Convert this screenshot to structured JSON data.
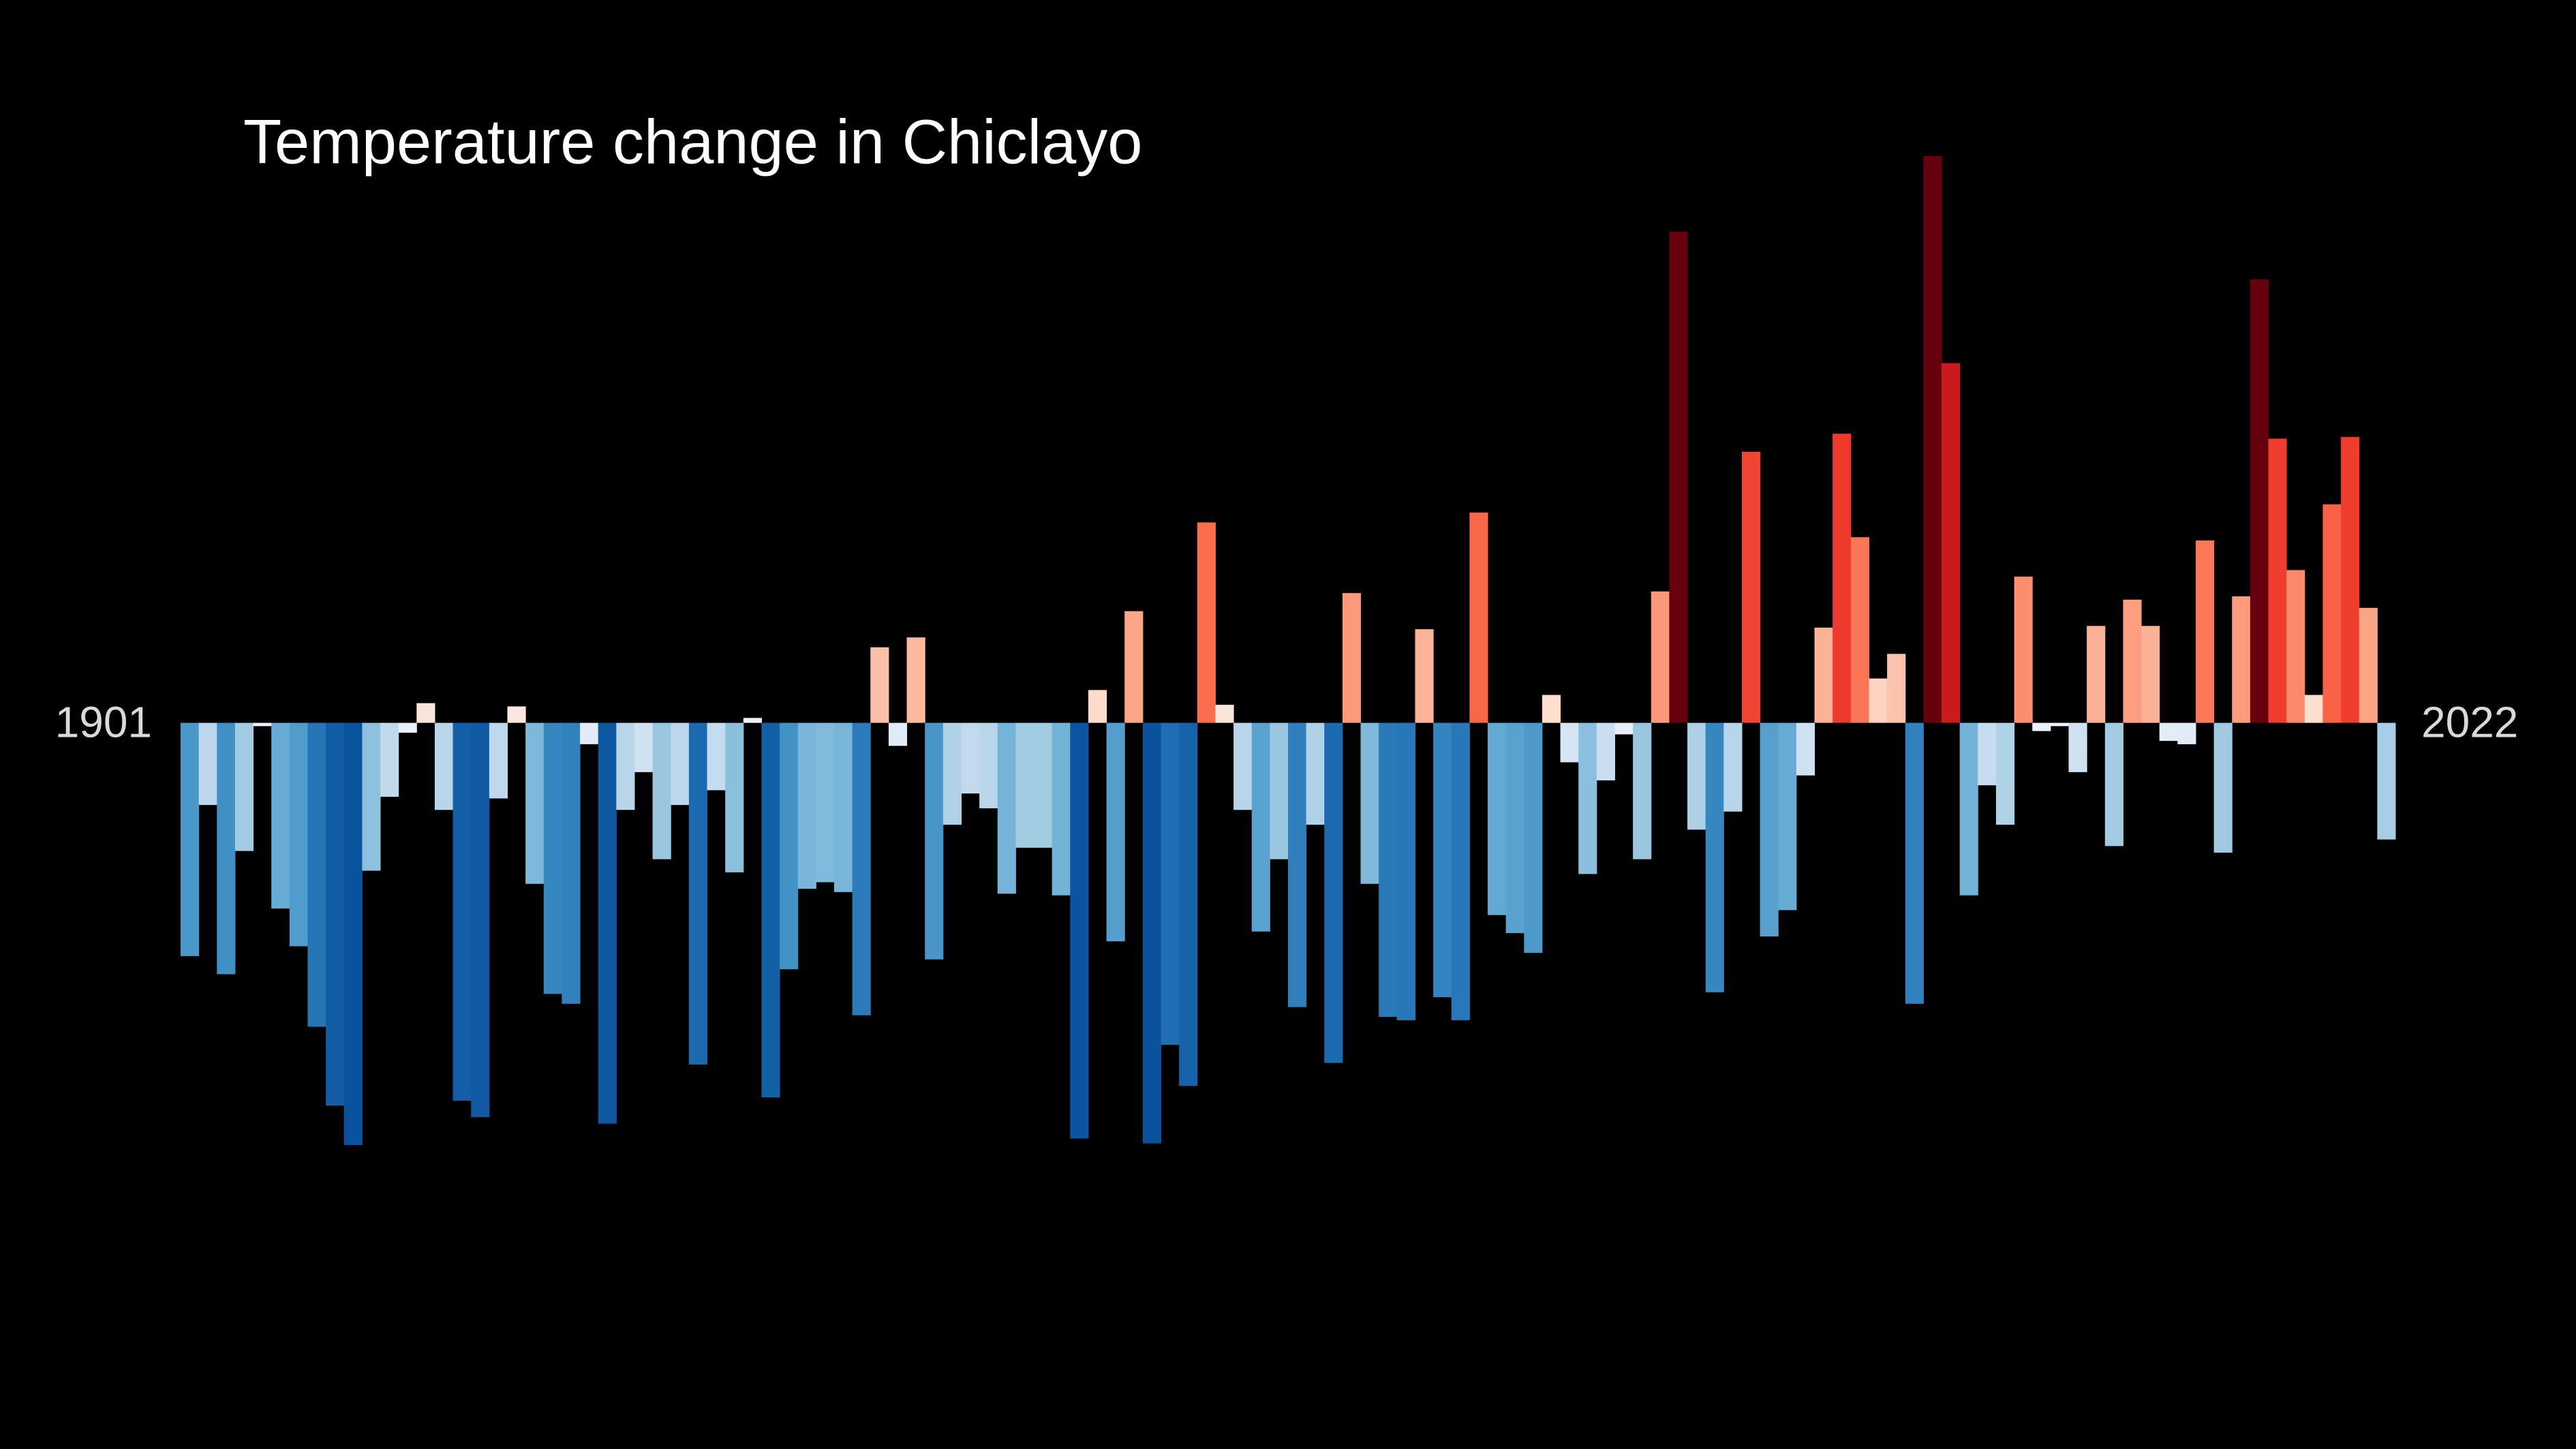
{
  "chart_data": {
    "type": "bar",
    "title": "Temperature change in Chiclayo",
    "categories": [
      "1901",
      null,
      null,
      null,
      null,
      null,
      null,
      null,
      null,
      null,
      null,
      null,
      null,
      null,
      null,
      null,
      null,
      null,
      null,
      null,
      null,
      null,
      null,
      null,
      null,
      null,
      null,
      null,
      null,
      null,
      null,
      null,
      null,
      null,
      null,
      null,
      null,
      null,
      null,
      null,
      null,
      null,
      null,
      null,
      null,
      null,
      null,
      null,
      null,
      null,
      null,
      null,
      null,
      null,
      null,
      null,
      null,
      null,
      null,
      null,
      null,
      null,
      null,
      null,
      null,
      null,
      null,
      null,
      null,
      null,
      null,
      null,
      null,
      null,
      null,
      null,
      null,
      null,
      null,
      null,
      null,
      null,
      null,
      null,
      null,
      null,
      null,
      null,
      null,
      null,
      null,
      null,
      null,
      null,
      null,
      null,
      null,
      null,
      null,
      null,
      null,
      null,
      null,
      null,
      null,
      null,
      null,
      null,
      null,
      null,
      null,
      null,
      null,
      null,
      null,
      null,
      null,
      null,
      null,
      null,
      null,
      "2022"
    ],
    "values": [
      -1.42,
      -0.5,
      -1.53,
      -0.78,
      -0.02,
      -1.13,
      -1.36,
      -1.85,
      -2.33,
      -2.57,
      -0.9,
      -0.45,
      -0.06,
      0.12,
      -0.53,
      -2.3,
      -2.4,
      -0.46,
      0.1,
      -0.98,
      -1.65,
      -1.71,
      -0.13,
      -2.44,
      -0.53,
      -0.3,
      -0.83,
      -0.5,
      -2.08,
      -0.41,
      -0.91,
      0.03,
      -2.28,
      -1.5,
      -1.01,
      -0.97,
      -1.03,
      -1.78,
      0.46,
      -0.14,
      0.52,
      -1.44,
      -0.62,
      -0.43,
      -0.52,
      -1.04,
      -0.76,
      -0.76,
      -1.05,
      -2.53,
      0.2,
      -1.33,
      0.68,
      -2.56,
      -1.96,
      -2.21,
      1.22,
      0.11,
      -0.53,
      -1.27,
      -0.83,
      -1.73,
      -0.62,
      -2.07,
      0.79,
      -0.98,
      -1.79,
      -1.81,
      0.57,
      -1.67,
      -1.81,
      1.28,
      -1.17,
      -1.28,
      -1.4,
      0.17,
      -0.24,
      -0.92,
      -0.35,
      -0.07,
      -0.83,
      0.8,
      2.99,
      -0.65,
      -1.64,
      -0.54,
      1.65,
      -1.3,
      -1.14,
      -0.32,
      0.58,
      1.76,
      1.13,
      0.27,
      0.42,
      -1.71,
      3.45,
      2.19,
      -1.05,
      -0.38,
      -0.62,
      0.89,
      -0.05,
      -0.02,
      -0.3,
      0.59,
      -0.75,
      0.75,
      0.59,
      -0.11,
      -0.13,
      1.11,
      -0.79,
      0.77,
      2.7,
      1.73,
      0.93,
      0.17,
      1.33,
      1.74,
      0.7,
      -0.71
    ],
    "color_scale": [
      [
        -2.6,
        "#08519c"
      ],
      [
        -1.9,
        "#2171b5"
      ],
      [
        -1.5,
        "#4292c6"
      ],
      [
        -1.1,
        "#6baed6"
      ],
      [
        -0.8,
        "#9ecae1"
      ],
      [
        -0.4,
        "#c6dbef"
      ],
      [
        0,
        "#eef4fb"
      ],
      [
        0.15,
        "#fee0d2"
      ],
      [
        0.5,
        "#fcbba1"
      ],
      [
        0.85,
        "#fc9272"
      ],
      [
        1.25,
        "#fb6a4a"
      ],
      [
        1.75,
        "#ef3b2c"
      ],
      [
        2.2,
        "#cb181d"
      ],
      [
        2.7,
        "#67000d"
      ]
    ],
    "ylim": [
      -4.42,
      4.4
    ],
    "grid": false
  }
}
